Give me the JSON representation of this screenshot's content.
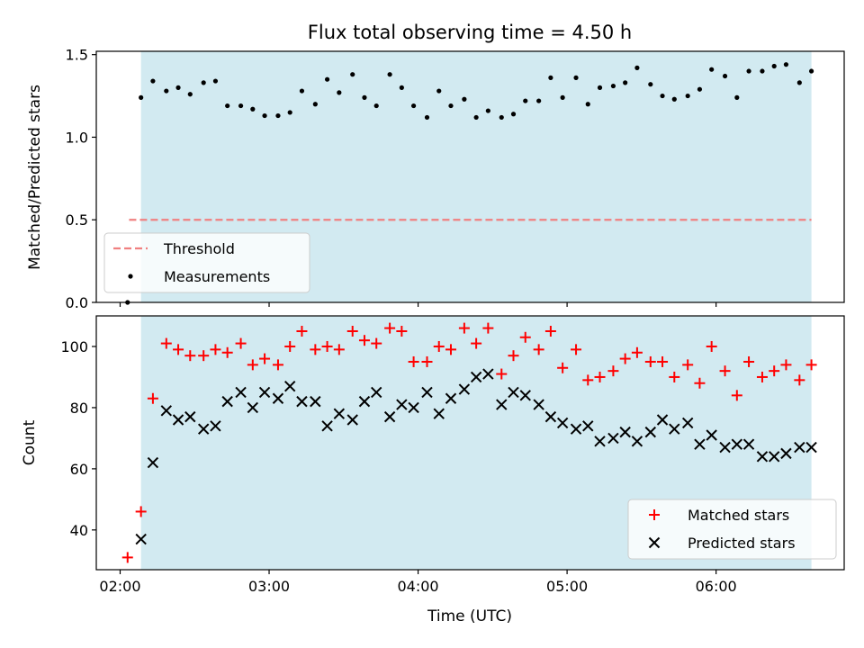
{
  "chart_data": [
    {
      "type": "scatter",
      "title": "Flux total observing time = 4.50 h",
      "xlabel": "",
      "ylabel": "Matched/Predicted stars",
      "xlim_hours": [
        1.84,
        6.86
      ],
      "ylim": [
        0,
        1.52
      ],
      "yticks": [
        "0.0",
        "0.5",
        "1.0",
        "1.5"
      ],
      "shaded_x_hours": [
        2.14,
        6.64
      ],
      "shade_color": "#add8e6",
      "threshold": {
        "name": "Threshold",
        "value": 0.5,
        "x_hours": [
          2.06,
          6.64
        ],
        "color": "#f08080"
      },
      "legend": {
        "placement": "lower-left",
        "entries": [
          "Threshold",
          "Measurements"
        ]
      },
      "series": [
        {
          "name": "Measurements",
          "color": "#000000",
          "x_hours": [
            2.05,
            2.14,
            2.22,
            2.31,
            2.39,
            2.47,
            2.56,
            2.64,
            2.72,
            2.81,
            2.89,
            2.97,
            3.06,
            3.14,
            3.22,
            3.31,
            3.39,
            3.47,
            3.56,
            3.64,
            3.72,
            3.81,
            3.89,
            3.97,
            4.06,
            4.14,
            4.22,
            4.31,
            4.39,
            4.47,
            4.56,
            4.64,
            4.72,
            4.81,
            4.89,
            4.97,
            5.06,
            5.14,
            5.22,
            5.31,
            5.39,
            5.47,
            5.56,
            5.64,
            5.72,
            5.81,
            5.89,
            5.97,
            6.06,
            6.14,
            6.22,
            6.31,
            6.39,
            6.47,
            6.56,
            6.64
          ],
          "y": [
            0.0,
            1.24,
            1.34,
            1.28,
            1.3,
            1.26,
            1.33,
            1.34,
            1.19,
            1.19,
            1.17,
            1.13,
            1.13,
            1.15,
            1.28,
            1.2,
            1.35,
            1.27,
            1.38,
            1.24,
            1.19,
            1.38,
            1.3,
            1.19,
            1.12,
            1.28,
            1.19,
            1.23,
            1.12,
            1.16,
            1.12,
            1.14,
            1.22,
            1.22,
            1.36,
            1.24,
            1.36,
            1.2,
            1.3,
            1.31,
            1.33,
            1.42,
            1.32,
            1.25,
            1.23,
            1.25,
            1.29,
            1.41,
            1.37,
            1.24,
            1.4,
            1.4,
            1.43,
            1.44,
            1.33,
            1.4
          ]
        }
      ]
    },
    {
      "type": "scatter",
      "title": "",
      "xlabel": "Time (UTC)",
      "ylabel": "Count",
      "xlim_hours": [
        1.84,
        6.86
      ],
      "ylim": [
        27,
        110
      ],
      "yticks": [
        "40",
        "60",
        "80",
        "100"
      ],
      "xticks": [
        "02:00",
        "03:00",
        "04:00",
        "05:00",
        "06:00"
      ],
      "xtick_hours": [
        2,
        3,
        4,
        5,
        6
      ],
      "shaded_x_hours": [
        2.14,
        6.64
      ],
      "shade_color": "#add8e6",
      "legend": {
        "placement": "lower-right",
        "entries": [
          "Matched stars",
          "Predicted stars"
        ]
      },
      "series": [
        {
          "name": "Matched stars",
          "marker": "plus",
          "color": "#ff0000",
          "x_hours": [
            2.05,
            2.14,
            2.22,
            2.31,
            2.39,
            2.47,
            2.56,
            2.64,
            2.72,
            2.81,
            2.89,
            2.97,
            3.06,
            3.14,
            3.22,
            3.31,
            3.39,
            3.47,
            3.56,
            3.64,
            3.72,
            3.81,
            3.89,
            3.97,
            4.06,
            4.14,
            4.22,
            4.31,
            4.39,
            4.47,
            4.56,
            4.64,
            4.72,
            4.81,
            4.89,
            4.97,
            5.06,
            5.14,
            5.22,
            5.31,
            5.39,
            5.47,
            5.56,
            5.64,
            5.72,
            5.81,
            5.89,
            5.97,
            6.06,
            6.14,
            6.22,
            6.31,
            6.39,
            6.47,
            6.56,
            6.64
          ],
          "y": [
            31,
            46,
            83,
            101,
            99,
            97,
            97,
            99,
            98,
            101,
            94,
            96,
            94,
            100,
            105,
            99,
            100,
            99,
            105,
            102,
            101,
            106,
            105,
            95,
            95,
            100,
            99,
            106,
            101,
            106,
            91,
            97,
            103,
            99,
            105,
            93,
            99,
            89,
            90,
            92,
            96,
            98,
            95,
            95,
            90,
            94,
            88,
            100,
            92,
            84,
            95,
            90,
            92,
            94,
            89,
            94
          ]
        },
        {
          "name": "Predicted stars",
          "marker": "x",
          "color": "#000000",
          "x_hours": [
            2.14,
            2.22,
            2.31,
            2.39,
            2.47,
            2.56,
            2.64,
            2.72,
            2.81,
            2.89,
            2.97,
            3.06,
            3.14,
            3.22,
            3.31,
            3.39,
            3.47,
            3.56,
            3.64,
            3.72,
            3.81,
            3.89,
            3.97,
            4.06,
            4.14,
            4.22,
            4.31,
            4.39,
            4.47,
            4.56,
            4.64,
            4.72,
            4.81,
            4.89,
            4.97,
            5.06,
            5.14,
            5.22,
            5.31,
            5.39,
            5.47,
            5.56,
            5.64,
            5.72,
            5.81,
            5.89,
            5.97,
            6.06,
            6.14,
            6.22,
            6.31,
            6.39,
            6.47,
            6.56,
            6.64
          ],
          "y": [
            37,
            62,
            79,
            76,
            77,
            73,
            74,
            82,
            85,
            80,
            85,
            83,
            87,
            82,
            82,
            74,
            78,
            76,
            82,
            85,
            77,
            81,
            80,
            85,
            78,
            83,
            86,
            90,
            91,
            81,
            85,
            84,
            81,
            77,
            75,
            73,
            74,
            69,
            70,
            72,
            69,
            72,
            76,
            73,
            75,
            68,
            71,
            67,
            68,
            68,
            64,
            64,
            65,
            67,
            67
          ]
        }
      ]
    }
  ]
}
